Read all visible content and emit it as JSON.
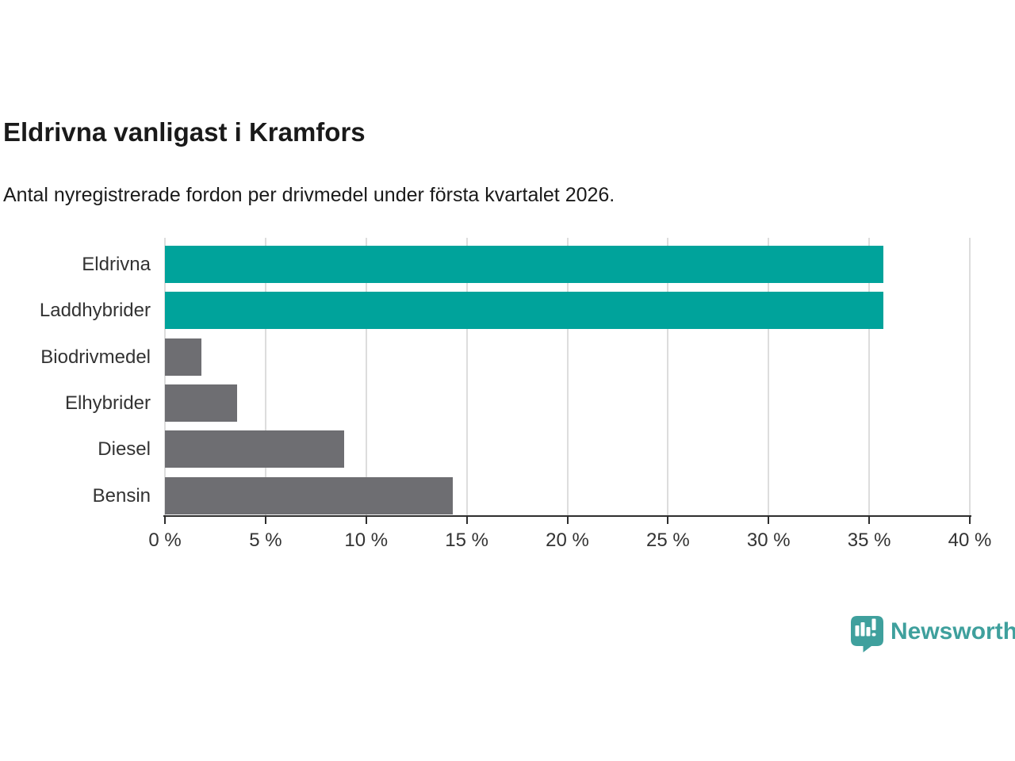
{
  "title": "Eldrivna vanligast i Kramfors",
  "subtitle": "Antal nyregistrerade fordon per drivmedel under första kvartalet 2026.",
  "chart_data": {
    "type": "bar",
    "orientation": "horizontal",
    "title": "Eldrivna vanligast i Kramfors",
    "subtitle": "Antal nyregistrerade fordon per drivmedel under första kvartalet 2026.",
    "categories": [
      "Eldrivna",
      "Laddhybrider",
      "Biodrivmedel",
      "Elhybrider",
      "Diesel",
      "Bensin"
    ],
    "values": [
      35.7,
      35.7,
      1.8,
      3.6,
      8.9,
      14.3
    ],
    "unit": "%",
    "xlim": [
      0,
      40
    ],
    "x_tick_values": [
      0,
      5,
      10,
      15,
      20,
      25,
      30,
      35,
      40
    ],
    "x_tick_suffix": " %",
    "grid": true,
    "legend_position": "none",
    "highlighted_categories": [
      "Eldrivna",
      "Laddhybrider"
    ],
    "bar_colors": [
      "#00A39B",
      "#00A39B",
      "#6E6E72",
      "#6E6E72",
      "#6E6E72",
      "#6E6E72"
    ]
  },
  "colors": {
    "highlight": "#00A39B",
    "neutral": "#6E6E72",
    "gridline": "#DDDDDD",
    "axis": "#2E2E2E",
    "tick_text": "#333333",
    "title_text": "#1A1A1A",
    "brand": "#3FA09D",
    "background": "#FFFFFF"
  },
  "footer": {
    "brand_name": "Newsworthy",
    "logo_icon": "newsworthy-speech-bubble-bar-chart-icon"
  }
}
